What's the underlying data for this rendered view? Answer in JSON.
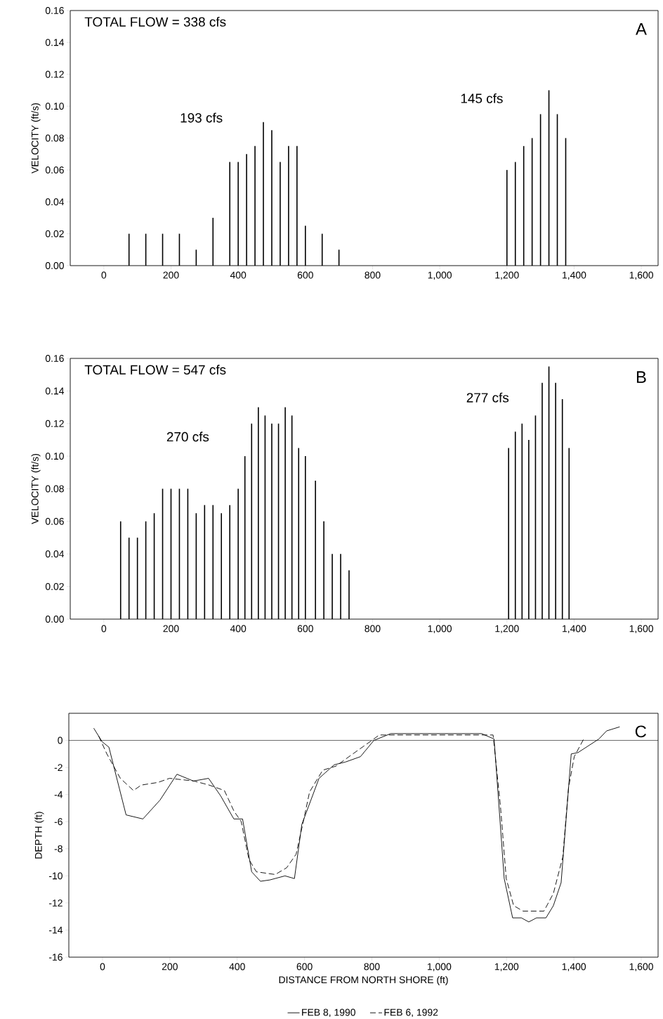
{
  "chart_data": [
    {
      "type": "bar",
      "ylabel": "VELOCITY (ft/s)",
      "color": "#000000",
      "x": [
        75,
        125,
        175,
        225,
        275,
        325,
        375,
        400,
        425,
        450,
        475,
        500,
        525,
        550,
        575,
        600,
        650,
        700,
        1200,
        1225,
        1250,
        1275,
        1300,
        1325,
        1350,
        1375
      ],
      "values": [
        0.02,
        0.02,
        0.02,
        0.02,
        0.01,
        0.03,
        0.065,
        0.065,
        0.07,
        0.075,
        0.09,
        0.085,
        0.065,
        0.075,
        0.075,
        0.025,
        0.02,
        0.01,
        0.06,
        0.065,
        0.075,
        0.08,
        0.095,
        0.11,
        0.095,
        0.08
      ],
      "xlim": [
        -100,
        1650
      ],
      "xticks": [
        0,
        200,
        400,
        600,
        800,
        {
          "value": 1000,
          "label": "1,000"
        },
        {
          "value": 1200,
          "label": "1,200"
        },
        {
          "value": 1400,
          "label": "1,400"
        },
        {
          "value": 1600,
          "label": "1,600"
        }
      ],
      "ylim": [
        0,
        0.16
      ],
      "yticks": [
        {
          "value": 0,
          "label": "0.00"
        },
        {
          "value": 0.02,
          "label": "0.02"
        },
        {
          "value": 0.04,
          "label": "0.04"
        },
        {
          "value": 0.06,
          "label": "0.06"
        },
        {
          "value": 0.08,
          "label": "0.08"
        },
        {
          "value": 0.1,
          "label": "0.10"
        },
        {
          "value": 0.12,
          "label": "0.12"
        },
        {
          "value": 0.14,
          "label": "0.14"
        },
        {
          "value": 0.16,
          "label": "0.16"
        }
      ],
      "annotations": [
        "TOTAL FLOW = 338 cfs",
        "A",
        "193 cfs",
        "145 cfs"
      ]
    },
    {
      "type": "bar",
      "ylabel": "VELOCITY (ft/s)",
      "color": "#000000",
      "x": [
        50,
        75,
        100,
        125,
        150,
        175,
        200,
        225,
        250,
        275,
        300,
        325,
        350,
        375,
        400,
        420,
        440,
        460,
        480,
        500,
        520,
        540,
        560,
        580,
        600,
        630,
        655,
        680,
        705,
        730,
        1205,
        1225,
        1245,
        1265,
        1285,
        1305,
        1325,
        1345,
        1365,
        1385
      ],
      "values": [
        0.06,
        0.05,
        0.05,
        0.06,
        0.065,
        0.08,
        0.08,
        0.08,
        0.08,
        0.065,
        0.07,
        0.07,
        0.065,
        0.07,
        0.08,
        0.1,
        0.12,
        0.13,
        0.125,
        0.12,
        0.12,
        0.13,
        0.125,
        0.105,
        0.1,
        0.085,
        0.06,
        0.04,
        0.04,
        0.03,
        0.105,
        0.115,
        0.12,
        0.11,
        0.125,
        0.145,
        0.155,
        0.145,
        0.135,
        0.105
      ],
      "xlim": [
        -100,
        1650
      ],
      "xticks": [
        0,
        200,
        400,
        600,
        800,
        {
          "value": 1000,
          "label": "1,000"
        },
        {
          "value": 1200,
          "label": "1,200"
        },
        {
          "value": 1400,
          "label": "1,400"
        },
        {
          "value": 1600,
          "label": "1,600"
        }
      ],
      "ylim": [
        0,
        0.16
      ],
      "yticks": [
        {
          "value": 0,
          "label": "0.00"
        },
        {
          "value": 0.02,
          "label": "0.02"
        },
        {
          "value": 0.04,
          "label": "0.04"
        },
        {
          "value": 0.06,
          "label": "0.06"
        },
        {
          "value": 0.08,
          "label": "0.08"
        },
        {
          "value": 0.1,
          "label": "0.10"
        },
        {
          "value": 0.12,
          "label": "0.12"
        },
        {
          "value": 0.14,
          "label": "0.14"
        },
        {
          "value": 0.16,
          "label": "0.16"
        }
      ],
      "annotations": [
        "TOTAL FLOW = 547 cfs",
        "B",
        "270 cfs",
        "277 cfs"
      ]
    },
    {
      "type": "line",
      "xlabel": "DISTANCE FROM NORTH SHORE (ft)",
      "ylabel": "DEPTH (ft)",
      "legend": "bottom",
      "marker": "none",
      "series": [
        {
          "name": "FEB 8, 1990",
          "color": "#000000",
          "line_style": "solid",
          "x": [
            -26,
            -1,
            19,
            70,
            120,
            171,
            221,
            270,
            315,
            351,
            390,
            416,
            443,
            469,
            497,
            542,
            570,
            592,
            643,
            688,
            721,
            766,
            806,
            856,
            1126,
            1163,
            1193,
            1218,
            1244,
            1266,
            1289,
            1317,
            1339,
            1362,
            1392,
            1412,
            1474,
            1497,
            1536
          ],
          "values": [
            0.9,
            -0.1,
            -0.5,
            -5.5,
            -5.8,
            -4.4,
            -2.5,
            -3.0,
            -2.8,
            -4.1,
            -5.8,
            -5.8,
            -9.7,
            -10.4,
            -10.3,
            -10.0,
            -10.2,
            -6.2,
            -2.8,
            -1.8,
            -1.6,
            -1.2,
            0.0,
            0.5,
            0.5,
            0.1,
            -10.2,
            -13.1,
            -13.1,
            -13.4,
            -13.1,
            -13.1,
            -12.2,
            -10.5,
            -1.0,
            -0.9,
            0.1,
            0.7,
            1.0
          ]
        },
        {
          "name": "FEB 6, 1992",
          "color": "#000000",
          "line_style": "dashed",
          "x": [
            -11,
            13,
            53,
            92,
            115,
            165,
            199,
            272,
            317,
            362,
            390,
            412,
            435,
            457,
            513,
            547,
            575,
            598,
            615,
            654,
            693,
            749,
            800,
            822,
            1160,
            1182,
            1199,
            1221,
            1249,
            1311,
            1339,
            1367,
            1384,
            1401,
            1429
          ],
          "values": [
            0.3,
            -1.0,
            -2.8,
            -3.7,
            -3.3,
            -3.1,
            -2.8,
            -3.0,
            -3.3,
            -3.7,
            -5.2,
            -6.0,
            -8.8,
            -9.7,
            -9.9,
            -9.4,
            -8.4,
            -5.8,
            -3.8,
            -2.2,
            -1.9,
            -0.9,
            0.0,
            0.4,
            0.4,
            -4.9,
            -10.2,
            -12.2,
            -12.6,
            -12.6,
            -11.3,
            -8.6,
            -3.5,
            -1.2,
            0.1
          ]
        }
      ],
      "ref_lines": [
        {
          "axis": "y",
          "value": 0,
          "color": "#000000"
        }
      ],
      "xlim": [
        -100,
        1650
      ],
      "xticks": [
        0,
        200,
        400,
        600,
        800,
        {
          "value": 1000,
          "label": "1,000"
        },
        {
          "value": 1200,
          "label": "1,200"
        },
        {
          "value": 1400,
          "label": "1,400"
        },
        {
          "value": 1600,
          "label": "1,600"
        }
      ],
      "ylim": [
        -16,
        2
      ],
      "yticks": [
        -16,
        -14,
        -12,
        -10,
        -8,
        -6,
        -4,
        -2,
        0
      ],
      "annotations": [
        "C"
      ]
    }
  ]
}
